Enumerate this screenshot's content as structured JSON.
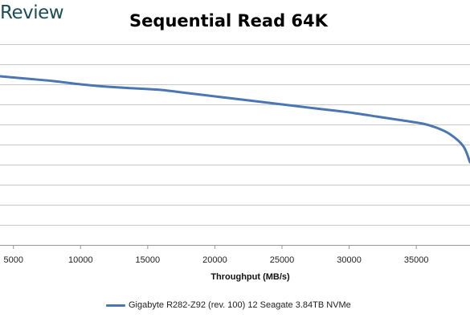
{
  "brand": {
    "logo_text": "Review"
  },
  "chart_data": {
    "type": "line",
    "title": "Sequential Read 64K",
    "xlabel": "Throughput (MB/s)",
    "ylabel": "",
    "xlim": [
      4000,
      39000
    ],
    "x_ticks": [
      5000,
      10000,
      15000,
      20000,
      25000,
      30000,
      35000
    ],
    "x_tick_labels": [
      "5000",
      "10000",
      "15000",
      "20000",
      "25000",
      "30000",
      "35000"
    ],
    "grid": true,
    "legend_position": "bottom",
    "colors": {
      "series": "#4a77b4",
      "grid": "#c8c8c8",
      "axis": "#999999"
    },
    "series": [
      {
        "name": "Gigabyte R282-Z92 (rev. 100) 12 Seagate 3.84TB NVMe",
        "points": [
          [
            4000,
            210
          ],
          [
            6000,
            207
          ],
          [
            8000,
            204
          ],
          [
            10000,
            200
          ],
          [
            12000,
            197
          ],
          [
            14000,
            195
          ],
          [
            16000,
            193
          ],
          [
            18000,
            189
          ],
          [
            20000,
            185
          ],
          [
            22000,
            181
          ],
          [
            24000,
            177
          ],
          [
            26000,
            173
          ],
          [
            28000,
            169
          ],
          [
            30000,
            165
          ],
          [
            32000,
            160
          ],
          [
            34000,
            155
          ],
          [
            35500,
            151
          ],
          [
            36500,
            146
          ],
          [
            37500,
            138
          ],
          [
            38500,
            123
          ],
          [
            39000,
            103
          ]
        ]
      }
    ]
  }
}
